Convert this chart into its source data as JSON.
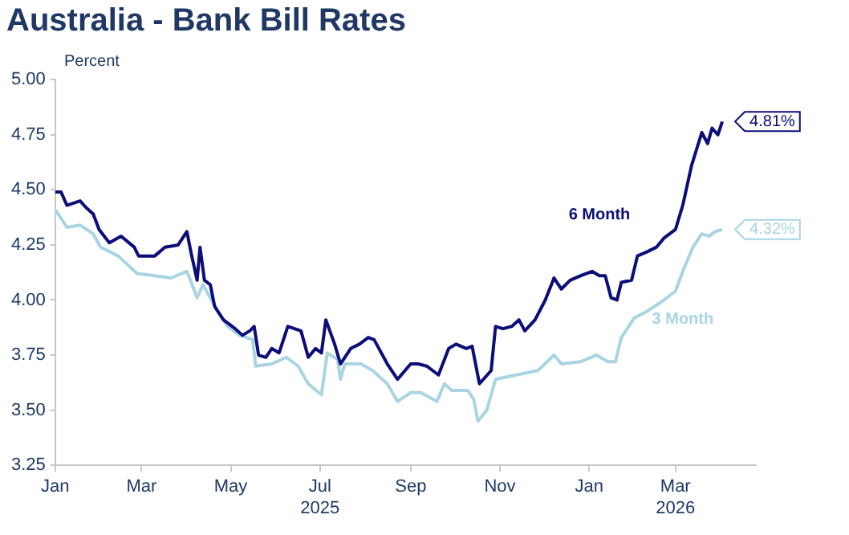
{
  "chart_data": {
    "type": "line",
    "title": "Australia - Bank Bill Rates",
    "ylabel": "Percent",
    "legend": false,
    "grid": false,
    "marker": "none",
    "line_style": "solid",
    "xlim": [
      "2025-01-01",
      "2026-04-25"
    ],
    "xticks": [
      {
        "value": "2025-01-01",
        "label": "Jan"
      },
      {
        "value": "2025-03-01",
        "label": "Mar"
      },
      {
        "value": "2025-05-01",
        "label": "May"
      },
      {
        "value": "2025-07-01",
        "label": "Jul\n2025"
      },
      {
        "value": "2025-09-01",
        "label": "Sep"
      },
      {
        "value": "2025-11-01",
        "label": "Nov"
      },
      {
        "value": "2026-01-01",
        "label": "Jan"
      },
      {
        "value": "2026-03-01",
        "label": "Mar\n2026"
      }
    ],
    "ylim": [
      3.25,
      5.0
    ],
    "yticks": [
      {
        "value": 3.25,
        "label": "3.25"
      },
      {
        "value": 3.5,
        "label": "3.50"
      },
      {
        "value": 3.75,
        "label": "3.75"
      },
      {
        "value": 4.0,
        "label": "4.00"
      },
      {
        "value": 4.25,
        "label": "4.25"
      },
      {
        "value": 4.5,
        "label": "4.50"
      },
      {
        "value": 4.75,
        "label": "4.75"
      },
      {
        "value": 5.0,
        "label": "5.00"
      }
    ],
    "series": [
      {
        "name": "6 Month",
        "color": "#0c0c7a",
        "x": [
          "2025-01-01",
          "2025-01-05",
          "2025-01-09",
          "2025-01-18",
          "2025-01-22",
          "2025-01-27",
          "2025-01-31",
          "2025-02-07",
          "2025-02-15",
          "2025-02-24",
          "2025-02-27",
          "2025-03-10",
          "2025-03-17",
          "2025-03-26",
          "2025-04-01",
          "2025-04-04",
          "2025-04-08",
          "2025-04-10",
          "2025-04-13",
          "2025-04-17",
          "2025-04-20",
          "2025-04-26",
          "2025-05-04",
          "2025-05-09",
          "2025-05-14",
          "2025-05-17",
          "2025-05-20",
          "2025-05-25",
          "2025-05-29",
          "2025-06-03",
          "2025-06-09",
          "2025-06-18",
          "2025-06-23",
          "2025-06-28",
          "2025-07-02",
          "2025-07-05",
          "2025-07-11",
          "2025-07-15",
          "2025-07-22",
          "2025-07-28",
          "2025-08-03",
          "2025-08-07",
          "2025-08-16",
          "2025-08-23",
          "2025-09-01",
          "2025-09-06",
          "2025-09-12",
          "2025-09-20",
          "2025-09-27",
          "2025-10-02",
          "2025-10-09",
          "2025-10-13",
          "2025-10-18",
          "2025-10-26",
          "2025-10-29",
          "2025-11-03",
          "2025-11-09",
          "2025-11-14",
          "2025-11-18",
          "2025-11-25",
          "2025-12-02",
          "2025-12-08",
          "2025-12-13",
          "2025-12-19",
          "2025-12-26",
          "2026-01-03",
          "2026-01-08",
          "2026-01-12",
          "2026-01-16",
          "2026-01-20",
          "2026-01-23",
          "2026-01-30",
          "2026-02-03",
          "2026-02-10",
          "2026-02-16",
          "2026-02-21",
          "2026-03-01",
          "2026-03-06",
          "2026-03-12",
          "2026-03-19",
          "2026-03-23",
          "2026-03-26",
          "2026-03-30",
          "2026-04-02"
        ],
        "values": [
          4.49,
          4.49,
          4.43,
          4.45,
          4.42,
          4.39,
          4.32,
          4.26,
          4.29,
          4.24,
          4.2,
          4.2,
          4.24,
          4.25,
          4.31,
          4.21,
          4.09,
          4.24,
          4.09,
          4.07,
          3.97,
          3.91,
          3.87,
          3.84,
          3.86,
          3.88,
          3.75,
          3.74,
          3.78,
          3.76,
          3.88,
          3.86,
          3.74,
          3.78,
          3.76,
          3.91,
          3.8,
          3.71,
          3.78,
          3.8,
          3.83,
          3.82,
          3.71,
          3.64,
          3.71,
          3.71,
          3.7,
          3.66,
          3.78,
          3.8,
          3.78,
          3.79,
          3.62,
          3.68,
          3.88,
          3.87,
          3.88,
          3.91,
          3.86,
          3.91,
          4.0,
          4.1,
          4.05,
          4.09,
          4.11,
          4.13,
          4.11,
          4.11,
          4.01,
          4.0,
          4.08,
          4.09,
          4.2,
          4.22,
          4.24,
          4.28,
          4.32,
          4.43,
          4.61,
          4.76,
          4.71,
          4.78,
          4.75,
          4.81
        ]
      },
      {
        "name": "3 Month",
        "color": "#a9d5e2",
        "x": [
          "2025-01-01",
          "2025-01-09",
          "2025-01-18",
          "2025-01-27",
          "2025-02-01",
          "2025-02-13",
          "2025-02-26",
          "2025-03-10",
          "2025-03-21",
          "2025-04-01",
          "2025-04-04",
          "2025-04-08",
          "2025-04-12",
          "2025-04-17",
          "2025-04-22",
          "2025-04-29",
          "2025-05-07",
          "2025-05-16",
          "2025-05-18",
          "2025-05-29",
          "2025-06-08",
          "2025-06-16",
          "2025-06-23",
          "2025-07-02",
          "2025-07-06",
          "2025-07-13",
          "2025-07-15",
          "2025-07-18",
          "2025-07-29",
          "2025-08-06",
          "2025-08-16",
          "2025-08-23",
          "2025-09-01",
          "2025-09-08",
          "2025-09-19",
          "2025-09-24",
          "2025-09-29",
          "2025-10-10",
          "2025-10-14",
          "2025-10-17",
          "2025-10-23",
          "2025-10-29",
          "2025-11-12",
          "2025-11-27",
          "2025-12-08",
          "2025-12-13",
          "2025-12-26",
          "2026-01-06",
          "2026-01-14",
          "2026-01-19",
          "2026-01-23",
          "2026-02-01",
          "2026-02-10",
          "2026-02-19",
          "2026-03-01",
          "2026-03-06",
          "2026-03-13",
          "2026-03-19",
          "2026-03-24",
          "2026-03-28",
          "2026-04-02"
        ],
        "values": [
          4.41,
          4.33,
          4.34,
          4.3,
          4.24,
          4.2,
          4.12,
          4.11,
          4.1,
          4.13,
          4.08,
          4.01,
          4.07,
          4.01,
          3.95,
          3.88,
          3.84,
          3.82,
          3.7,
          3.71,
          3.74,
          3.7,
          3.62,
          3.57,
          3.76,
          3.73,
          3.64,
          3.71,
          3.71,
          3.68,
          3.62,
          3.54,
          3.58,
          3.58,
          3.54,
          3.62,
          3.59,
          3.59,
          3.55,
          3.45,
          3.5,
          3.64,
          3.66,
          3.68,
          3.75,
          3.71,
          3.72,
          3.75,
          3.72,
          3.72,
          3.83,
          3.92,
          3.95,
          3.99,
          4.04,
          4.13,
          4.24,
          4.3,
          4.29,
          4.31,
          4.32
        ]
      }
    ],
    "annotations": [
      {
        "text": "4.81%",
        "x": "2026-04-02",
        "y": 4.81
      },
      {
        "text": "4.32%",
        "x": "2026-04-02",
        "y": 4.32
      }
    ]
  }
}
